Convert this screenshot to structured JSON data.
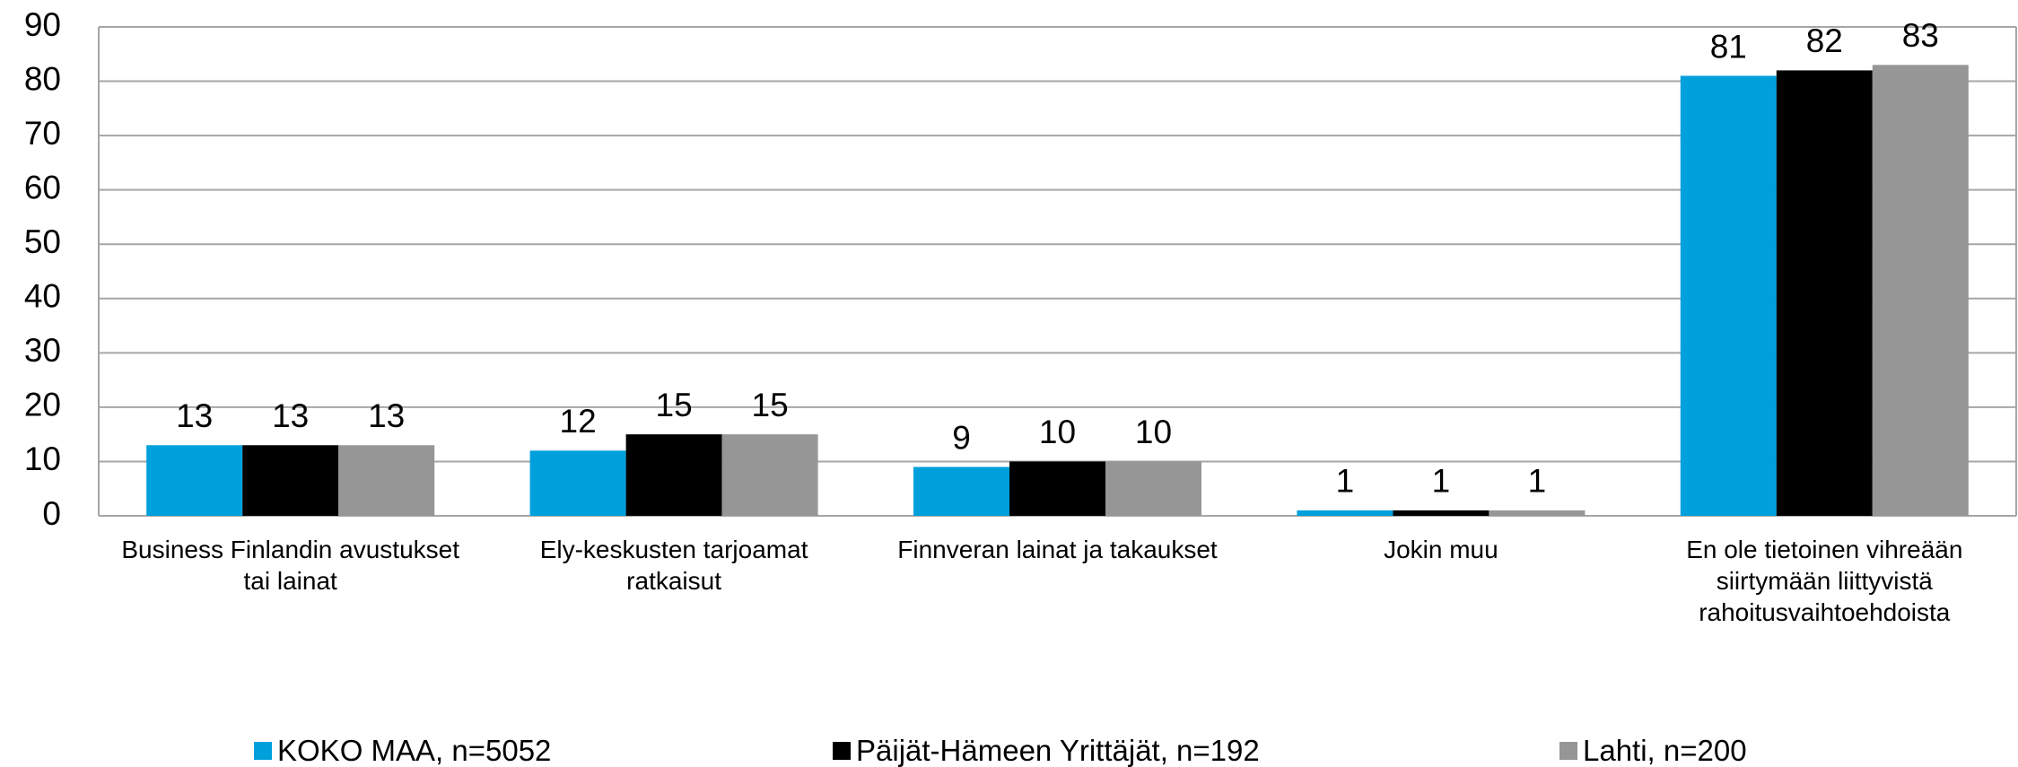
{
  "chart_data": {
    "type": "bar",
    "categories": [
      "Business Finlandin avustukset tai lainat",
      "Ely-keskusten tarjoamat ratkaisut",
      "Finnveran lainat ja takaukset",
      "Jokin muu",
      "En ole tietoinen vihreään siirtymään liittyvistä rahoitusvaihtoehdoista"
    ],
    "series": [
      {
        "name": "KOKO MAA, n=5052",
        "color": "#00a0dc",
        "values": [
          13,
          12,
          9,
          1,
          81
        ]
      },
      {
        "name": "Päijät-Hämeen Yrittäjät, n=192",
        "color": "#000000",
        "values": [
          13,
          15,
          10,
          1,
          82
        ]
      },
      {
        "name": "Lahti, n=200",
        "color": "#969696",
        "values": [
          13,
          15,
          10,
          1,
          83
        ]
      }
    ],
    "ylim": [
      0,
      90
    ],
    "yticks": [
      0,
      10,
      20,
      30,
      40,
      50,
      60,
      70,
      80,
      90
    ],
    "grid": true,
    "legend": "bottom"
  }
}
